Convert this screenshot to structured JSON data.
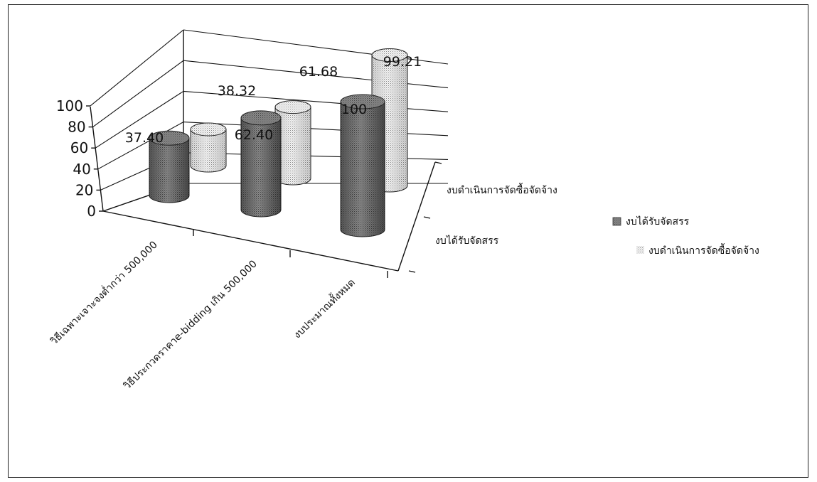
{
  "chart_data": {
    "type": "bar",
    "style": "3d-cylinder",
    "categories": [
      "วิธีเฉพาะเจาะจงต่ำกว่า 500,000",
      "วิธีประกวดราคาe-bidding เกิน 500,000",
      "งบประมาณทั้งหมด"
    ],
    "series": [
      {
        "name": "งบได้รับจัดสรร",
        "values": [
          37.4,
          62.4,
          100
        ],
        "labels": [
          "37.40",
          "62.40",
          "100"
        ],
        "color": "#7a7a7a"
      },
      {
        "name": "งบดำเนินการจัดซื้อจัดจ้าง",
        "values": [
          38.32,
          61.68,
          99.21
        ],
        "labels": [
          "38.32",
          "61.68",
          "99.21"
        ],
        "color": "#e6e6e6"
      }
    ],
    "ylim": [
      0,
      100
    ],
    "yticks": [
      "0",
      "20",
      "40",
      "60",
      "80",
      "100"
    ],
    "depth_axis_labels": [
      "งบดำเนินการจัดซื้อจัดจ้าง",
      "งบได้รับจัดสรร"
    ],
    "legend": [
      "งบได้รับจัดสรร",
      "งบดำเนินการจัดซื้อจัดจ้าง"
    ],
    "legend_position": "right",
    "grid": true
  }
}
